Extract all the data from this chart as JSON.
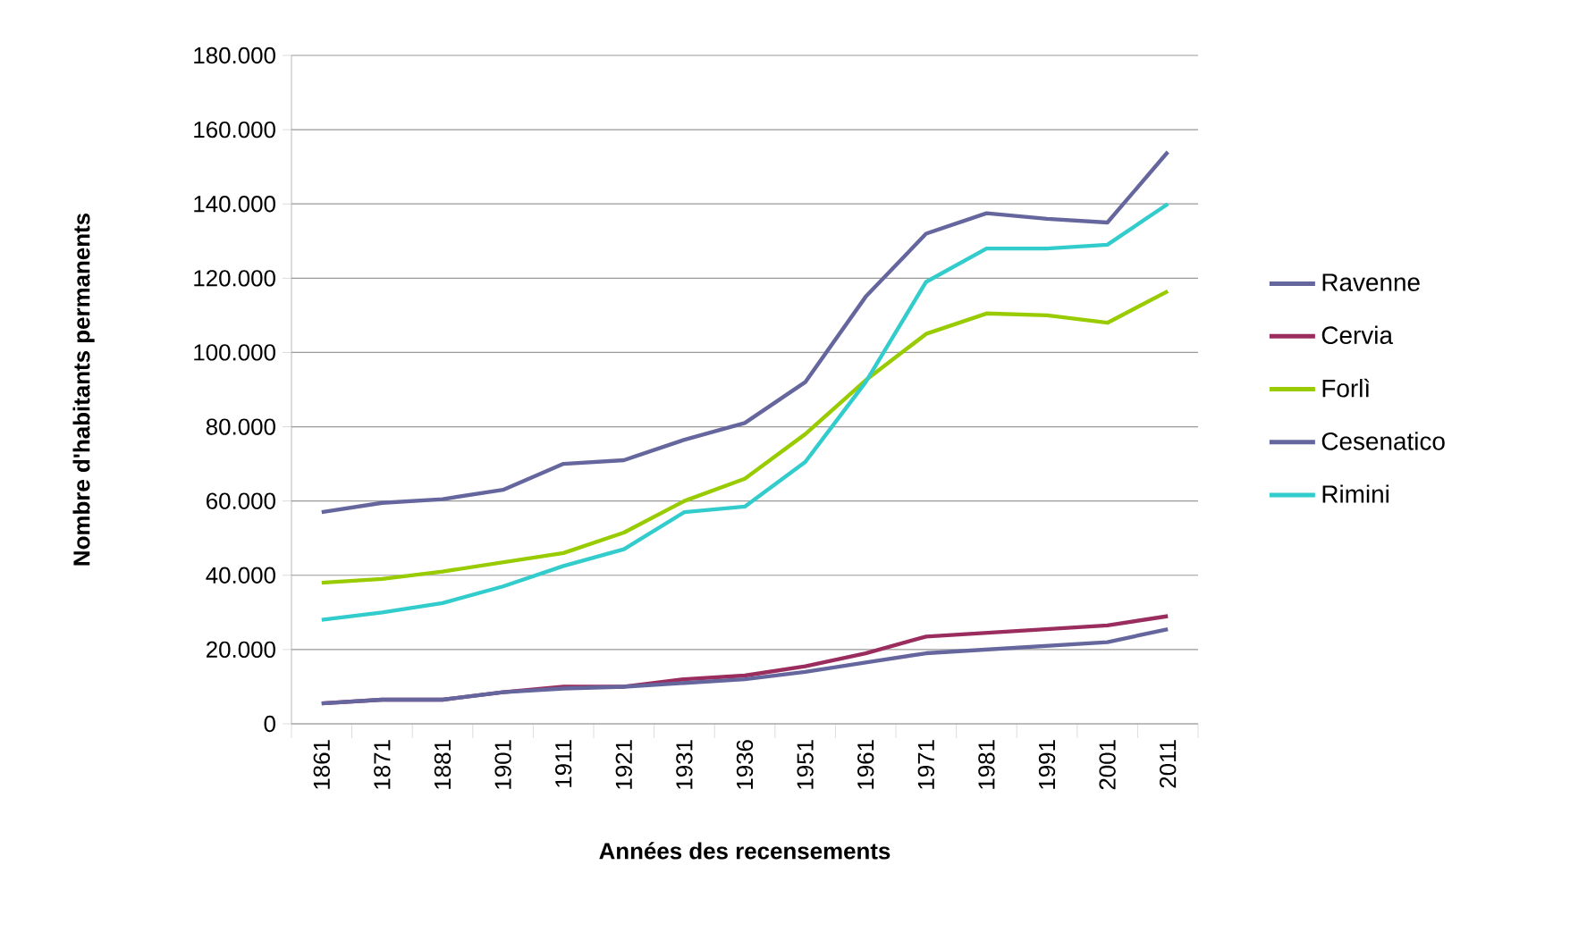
{
  "chart_data": {
    "type": "line",
    "xlabel": "Années des recensements",
    "ylabel": "Nombre d'habitants permanents",
    "categories": [
      "1861",
      "1871",
      "1881",
      "1901",
      "1911",
      "1921",
      "1931",
      "1936",
      "1951",
      "1961",
      "1971",
      "1981",
      "1991",
      "2001",
      "2011"
    ],
    "ylim": [
      0,
      180000
    ],
    "yticks": [
      0,
      {
        "value": 20000,
        "label": "20.000"
      },
      {
        "value": 40000,
        "label": "40.000"
      },
      {
        "value": 60000,
        "label": "60.000"
      },
      {
        "value": 80000,
        "label": "80.000"
      },
      {
        "value": 100000,
        "label": "100.000"
      },
      {
        "value": 120000,
        "label": "120.000"
      },
      {
        "value": 140000,
        "label": "140.000"
      },
      {
        "value": 160000,
        "label": "160.000"
      },
      {
        "value": 180000,
        "label": "180.000"
      }
    ],
    "grid": "y",
    "legend": "right",
    "marker": "none",
    "line_style": "solid",
    "series": [
      {
        "name": "Ravenne",
        "color": "#66669e",
        "values": [
          57000,
          59500,
          60500,
          63000,
          70000,
          71000,
          76500,
          81000,
          92000,
          115000,
          132000,
          137500,
          136000,
          135000,
          154000
        ]
      },
      {
        "name": "Cervia",
        "color": "#9b2d5e",
        "values": [
          5500,
          6500,
          6500,
          8500,
          10000,
          10000,
          12000,
          13000,
          15500,
          19000,
          23500,
          24500,
          25500,
          26500,
          29000
        ]
      },
      {
        "name": "Forlì",
        "color": "#99cc00",
        "values": [
          38000,
          39000,
          41000,
          43500,
          46000,
          51500,
          60000,
          66000,
          78000,
          92500,
          105000,
          110500,
          110000,
          108000,
          116500
        ]
      },
      {
        "name": "Cesenatico",
        "color": "#66669e",
        "values": [
          5500,
          6500,
          6500,
          8500,
          9500,
          10000,
          11000,
          12000,
          14000,
          16500,
          19000,
          20000,
          21000,
          22000,
          25500
        ]
      },
      {
        "name": "Rimini",
        "color": "#33cccc",
        "values": [
          28000,
          30000,
          32500,
          37000,
          42500,
          47000,
          57000,
          58500,
          70500,
          92000,
          119000,
          128000,
          128000,
          129000,
          140000
        ]
      }
    ]
  }
}
